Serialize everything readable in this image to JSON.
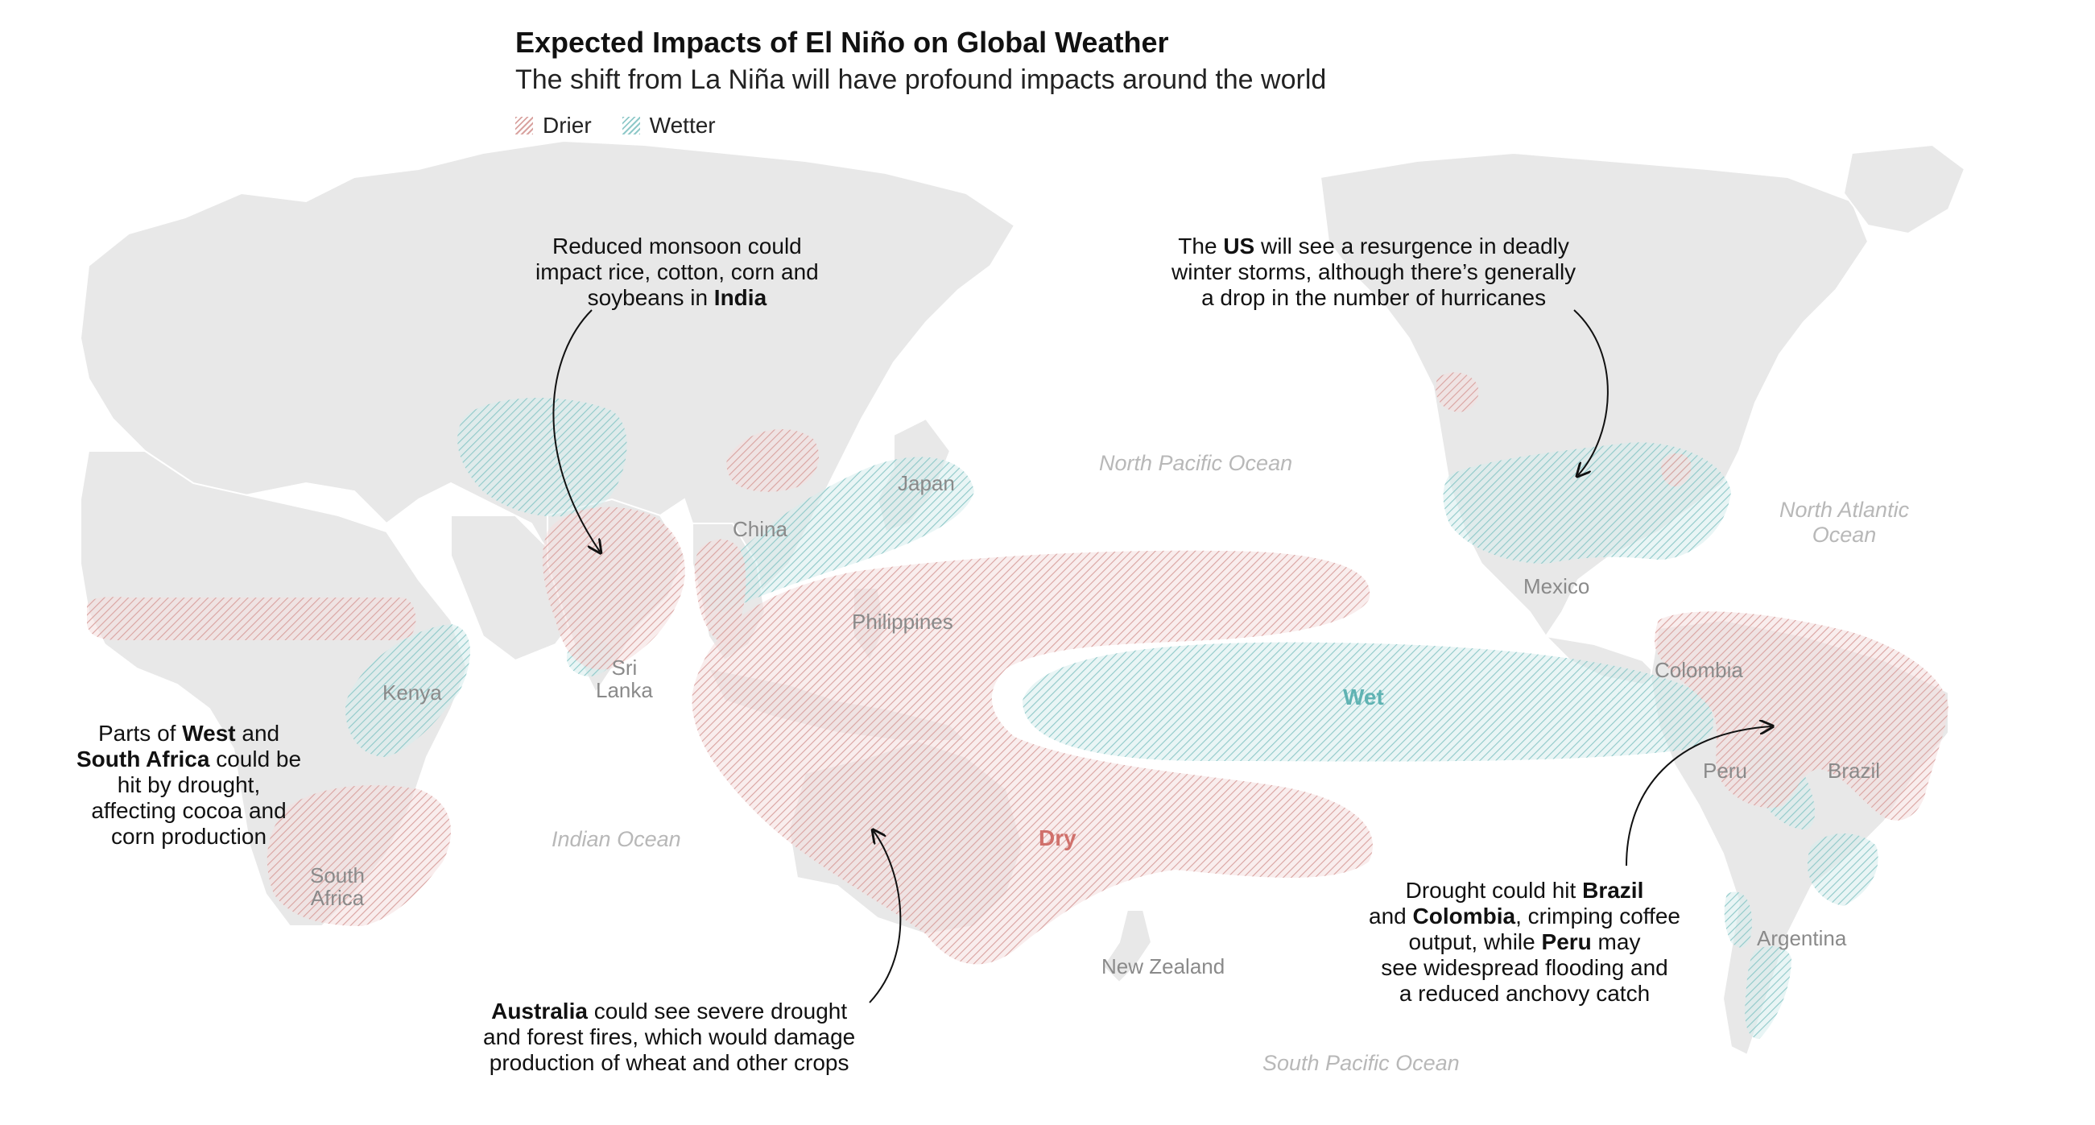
{
  "title": "Expected Impacts of El Niño on Global Weather",
  "subtitle": "The shift from La Niña will have profound impacts around the world",
  "legend": [
    {
      "label": "Drier",
      "color": "#d9a3a0"
    },
    {
      "label": "Wetter",
      "color": "#8fc9c9"
    }
  ],
  "colors": {
    "dry": "#d9a3a0",
    "wet": "#8fc9c9",
    "land": "#e8e8e8",
    "border": "#ffffff"
  },
  "oceans": {
    "north_pacific": "North Pacific Ocean",
    "north_atlantic_1": "North Atlantic",
    "north_atlantic_2": "Ocean",
    "indian": "Indian Ocean",
    "south_pacific": "South Pacific Ocean"
  },
  "places": {
    "japan": "Japan",
    "china": "China",
    "philippines": "Philippines",
    "sri_lanka_1": "Sri",
    "sri_lanka_2": "Lanka",
    "kenya": "Kenya",
    "south_africa_1": "South",
    "south_africa_2": "Africa",
    "new_zealand": "New Zealand",
    "mexico": "Mexico",
    "colombia": "Colombia",
    "peru": "Peru",
    "brazil": "Brazil",
    "argentina": "Argentina"
  },
  "region_labels": {
    "wet": "Wet",
    "dry": "Dry"
  },
  "annotations": {
    "india": {
      "line1": "Reduced monsoon could",
      "line2": "impact rice, cotton, corn and",
      "line3_pre": "soybeans in ",
      "line3_bold": "India"
    },
    "us": {
      "line1_pre": "The ",
      "line1_bold": "US",
      "line1_post": " will see a resurgence in deadly",
      "line2": "winter storms, although there’s generally",
      "line3": "a drop in the number of hurricanes"
    },
    "africa": {
      "line1_pre": "Parts of ",
      "line1_bold": "West",
      "line1_post": " and",
      "line2_bold": "South Africa",
      "line2_post": " could be",
      "line3": "hit by drought,",
      "line4": "affecting cocoa and",
      "line5": "corn production"
    },
    "australia": {
      "line1_bold": "Australia",
      "line1_post": " could see severe drought",
      "line2": "and forest fires, which would damage",
      "line3": "production of wheat and other crops"
    },
    "south_america": {
      "line1_pre": "Drought could hit ",
      "line1_bold": "Brazil",
      "line2_pre": "and ",
      "line2_bold": "Colombia",
      "line2_post": ", crimping coffee",
      "line3_pre": "output, while ",
      "line3_bold": "Peru",
      "line3_post": " may",
      "line4": "see widespread flooding and",
      "line5": "a reduced anchovy catch"
    }
  }
}
